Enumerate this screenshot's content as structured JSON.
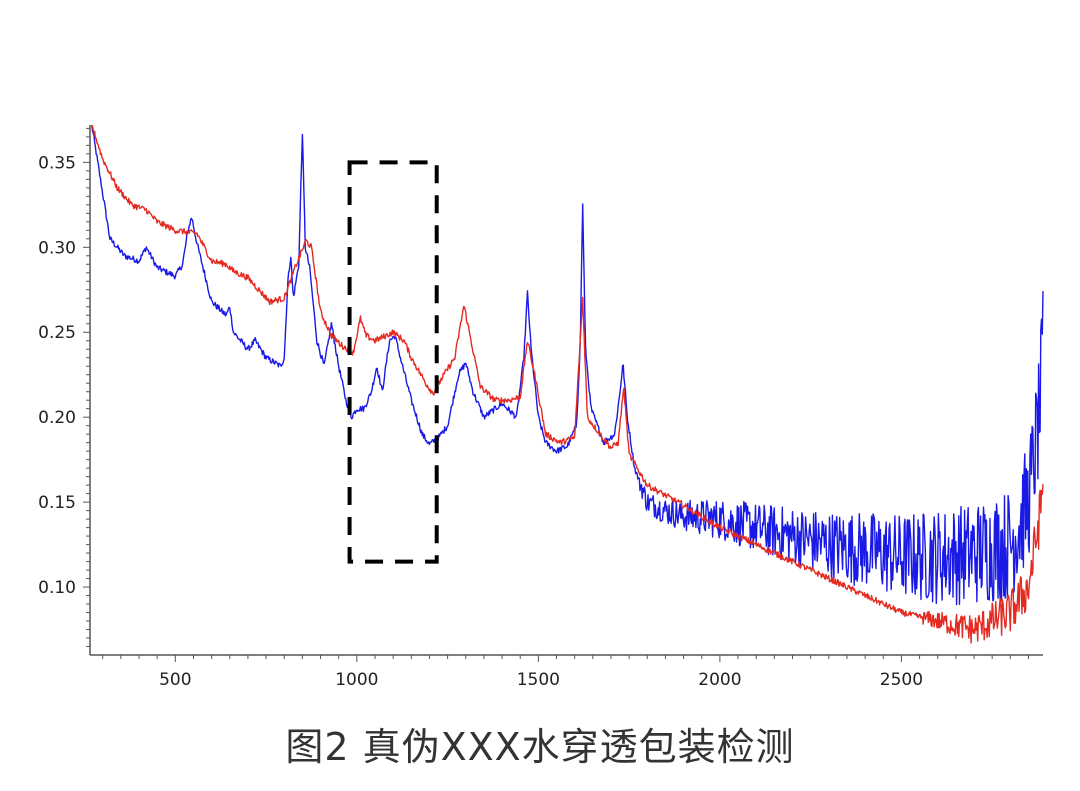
{
  "caption": "图2 真伪XXX水穿透包装检测",
  "chart_data": {
    "type": "line",
    "title": "",
    "xlabel": "",
    "ylabel": "",
    "xlim": [
      265,
      2890
    ],
    "ylim": [
      0.06,
      0.372
    ],
    "x_ticks": [
      500,
      1000,
      1500,
      2000,
      2500
    ],
    "x_tick_labels": [
      "500",
      "1000",
      "1500",
      "2000",
      "2500"
    ],
    "y_ticks": [
      0.1,
      0.15,
      0.2,
      0.25,
      0.3,
      0.35
    ],
    "y_tick_labels": [
      "0.10",
      "0.15",
      "0.20",
      "0.25",
      "0.30",
      "0.35"
    ],
    "grid": false,
    "legend": "none",
    "highlight_box": {
      "x_range": [
        980,
        1220
      ],
      "y_range": [
        0.115,
        0.35
      ],
      "style": "dashed",
      "color": "#000000"
    },
    "series": [
      {
        "color": "#1a1ae6",
        "noise_from": 1780,
        "points": [
          [
            270,
            0.372
          ],
          [
            290,
            0.345
          ],
          [
            320,
            0.305
          ],
          [
            360,
            0.295
          ],
          [
            400,
            0.292
          ],
          [
            420,
            0.3
          ],
          [
            450,
            0.288
          ],
          [
            500,
            0.283
          ],
          [
            520,
            0.29
          ],
          [
            535,
            0.31
          ],
          [
            545,
            0.318
          ],
          [
            560,
            0.302
          ],
          [
            600,
            0.268
          ],
          [
            640,
            0.26
          ],
          [
            650,
            0.265
          ],
          [
            660,
            0.25
          ],
          [
            700,
            0.24
          ],
          [
            720,
            0.245
          ],
          [
            750,
            0.235
          ],
          [
            790,
            0.23
          ],
          [
            800,
            0.235
          ],
          [
            810,
            0.28
          ],
          [
            818,
            0.295
          ],
          [
            825,
            0.27
          ],
          [
            840,
            0.29
          ],
          [
            850,
            0.368
          ],
          [
            858,
            0.3
          ],
          [
            870,
            0.288
          ],
          [
            890,
            0.245
          ],
          [
            910,
            0.23
          ],
          [
            930,
            0.255
          ],
          [
            950,
            0.23
          ],
          [
            970,
            0.21
          ],
          [
            985,
            0.2
          ],
          [
            1000,
            0.205
          ],
          [
            1020,
            0.205
          ],
          [
            1040,
            0.215
          ],
          [
            1055,
            0.23
          ],
          [
            1070,
            0.215
          ],
          [
            1090,
            0.245
          ],
          [
            1105,
            0.248
          ],
          [
            1120,
            0.235
          ],
          [
            1150,
            0.21
          ],
          [
            1180,
            0.19
          ],
          [
            1200,
            0.184
          ],
          [
            1225,
            0.188
          ],
          [
            1250,
            0.195
          ],
          [
            1280,
            0.225
          ],
          [
            1300,
            0.232
          ],
          [
            1320,
            0.215
          ],
          [
            1350,
            0.2
          ],
          [
            1400,
            0.208
          ],
          [
            1440,
            0.2
          ],
          [
            1460,
            0.235
          ],
          [
            1470,
            0.273
          ],
          [
            1480,
            0.24
          ],
          [
            1500,
            0.2
          ],
          [
            1520,
            0.185
          ],
          [
            1550,
            0.18
          ],
          [
            1580,
            0.183
          ],
          [
            1605,
            0.195
          ],
          [
            1615,
            0.24
          ],
          [
            1622,
            0.325
          ],
          [
            1630,
            0.24
          ],
          [
            1645,
            0.205
          ],
          [
            1680,
            0.185
          ],
          [
            1710,
            0.19
          ],
          [
            1725,
            0.215
          ],
          [
            1733,
            0.232
          ],
          [
            1745,
            0.2
          ],
          [
            1765,
            0.17
          ],
          [
            1800,
            0.15
          ],
          [
            1850,
            0.145
          ],
          [
            1900,
            0.142
          ],
          [
            2000,
            0.14
          ],
          [
            2100,
            0.135
          ],
          [
            2200,
            0.13
          ],
          [
            2300,
            0.125
          ],
          [
            2400,
            0.122
          ],
          [
            2500,
            0.118
          ],
          [
            2600,
            0.118
          ],
          [
            2700,
            0.12
          ],
          [
            2800,
            0.125
          ],
          [
            2850,
            0.15
          ],
          [
            2880,
            0.2
          ],
          [
            2890,
            0.24
          ]
        ]
      },
      {
        "color": "#e52a22",
        "noise_from": 2560,
        "points": [
          [
            270,
            0.372
          ],
          [
            300,
            0.352
          ],
          [
            340,
            0.335
          ],
          [
            380,
            0.325
          ],
          [
            420,
            0.322
          ],
          [
            450,
            0.315
          ],
          [
            500,
            0.31
          ],
          [
            560,
            0.308
          ],
          [
            600,
            0.292
          ],
          [
            640,
            0.29
          ],
          [
            660,
            0.286
          ],
          [
            700,
            0.282
          ],
          [
            760,
            0.268
          ],
          [
            800,
            0.27
          ],
          [
            830,
            0.288
          ],
          [
            860,
            0.304
          ],
          [
            875,
            0.3
          ],
          [
            900,
            0.262
          ],
          [
            930,
            0.248
          ],
          [
            960,
            0.242
          ],
          [
            990,
            0.238
          ],
          [
            1000,
            0.248
          ],
          [
            1010,
            0.258
          ],
          [
            1025,
            0.248
          ],
          [
            1050,
            0.245
          ],
          [
            1100,
            0.25
          ],
          [
            1130,
            0.245
          ],
          [
            1150,
            0.235
          ],
          [
            1190,
            0.22
          ],
          [
            1210,
            0.214
          ],
          [
            1240,
            0.225
          ],
          [
            1270,
            0.235
          ],
          [
            1295,
            0.266
          ],
          [
            1310,
            0.25
          ],
          [
            1340,
            0.218
          ],
          [
            1380,
            0.21
          ],
          [
            1420,
            0.21
          ],
          [
            1450,
            0.212
          ],
          [
            1470,
            0.245
          ],
          [
            1490,
            0.225
          ],
          [
            1520,
            0.19
          ],
          [
            1560,
            0.185
          ],
          [
            1600,
            0.188
          ],
          [
            1622,
            0.27
          ],
          [
            1635,
            0.2
          ],
          [
            1670,
            0.19
          ],
          [
            1700,
            0.182
          ],
          [
            1720,
            0.185
          ],
          [
            1735,
            0.218
          ],
          [
            1750,
            0.178
          ],
          [
            1800,
            0.16
          ],
          [
            1900,
            0.148
          ],
          [
            2000,
            0.135
          ],
          [
            2100,
            0.125
          ],
          [
            2200,
            0.115
          ],
          [
            2300,
            0.105
          ],
          [
            2400,
            0.095
          ],
          [
            2500,
            0.085
          ],
          [
            2600,
            0.08
          ],
          [
            2700,
            0.075
          ],
          [
            2800,
            0.085
          ],
          [
            2850,
            0.1
          ],
          [
            2880,
            0.14
          ],
          [
            2890,
            0.16
          ]
        ]
      }
    ]
  }
}
